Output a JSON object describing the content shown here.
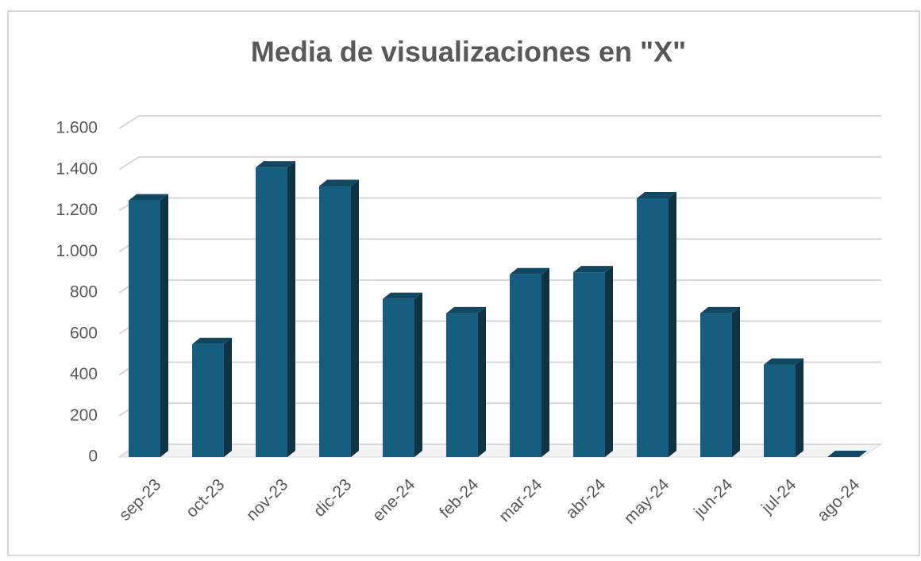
{
  "chart_data": {
    "type": "bar",
    "title": "Media de visualizaciones en \"X\"",
    "categories": [
      "sep-23",
      "oct-23",
      "nov-23",
      "dic-23",
      "ene-24",
      "feb-24",
      "mar-24",
      "abr-24",
      "may-24",
      "jun-24",
      "jul-24",
      "ago-24"
    ],
    "values": [
      1250,
      550,
      1410,
      1320,
      770,
      700,
      890,
      900,
      1260,
      700,
      450,
      0
    ],
    "color": "#165e80",
    "ylim": [
      0,
      1600
    ],
    "yticks": [
      0,
      200,
      400,
      600,
      800,
      {
        "value": 1000,
        "label": "1.000"
      },
      {
        "value": 1200,
        "label": "1.200"
      },
      {
        "value": 1400,
        "label": "1.400"
      },
      {
        "value": 1600,
        "label": "1.600"
      }
    ],
    "grid": true
  }
}
